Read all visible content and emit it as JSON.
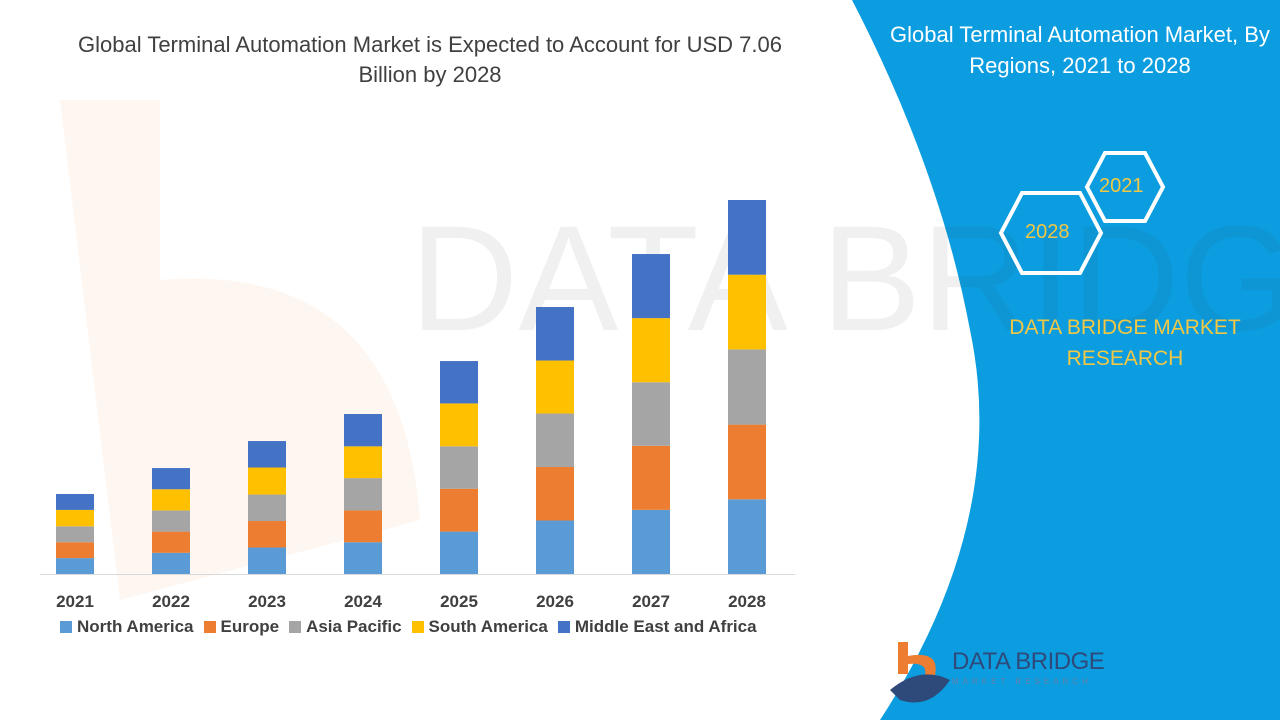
{
  "title": "Global Terminal Automation Market is Expected to Account for USD 7.06 Billion by 2028",
  "side_panel": {
    "title": "Global Terminal Automation Market, By Regions, 2021 to 2028",
    "hex_top": "2021",
    "hex_bottom": "2028",
    "brand": "DATA BRIDGE MARKET RESEARCH",
    "logo_text": "DATA BRIDGE",
    "logo_sub": "MARKET RESEARCH",
    "color": "#0b9de0"
  },
  "chart_data": {
    "type": "bar",
    "stacked": true,
    "title": "Global Terminal Automation Market is Expected to Account for USD 7.06 Billion by 2028",
    "xlabel": "",
    "ylabel": "",
    "grid": false,
    "legend": "bottom",
    "categories": [
      "2021",
      "2022",
      "2023",
      "2024",
      "2025",
      "2026",
      "2027",
      "2028"
    ],
    "ylim": [
      0,
      7.06
    ],
    "series": [
      {
        "name": "North America",
        "color": "#5b9bd5",
        "values": [
          0.3,
          0.4,
          0.5,
          0.6,
          0.8,
          1.01,
          1.21,
          1.41
        ]
      },
      {
        "name": "Europe",
        "color": "#ed7d31",
        "values": [
          0.3,
          0.4,
          0.5,
          0.6,
          0.81,
          1.01,
          1.21,
          1.41
        ]
      },
      {
        "name": "Asia Pacific",
        "color": "#a5a5a5",
        "values": [
          0.3,
          0.4,
          0.5,
          0.61,
          0.8,
          1.01,
          1.2,
          1.42
        ]
      },
      {
        "name": "South America",
        "color": "#ffc000",
        "values": [
          0.31,
          0.4,
          0.51,
          0.6,
          0.81,
          1.0,
          1.21,
          1.41
        ]
      },
      {
        "name": "Middle East and Africa",
        "color": "#4472c4",
        "values": [
          0.3,
          0.4,
          0.5,
          0.61,
          0.8,
          1.01,
          1.21,
          1.41
        ]
      }
    ]
  }
}
